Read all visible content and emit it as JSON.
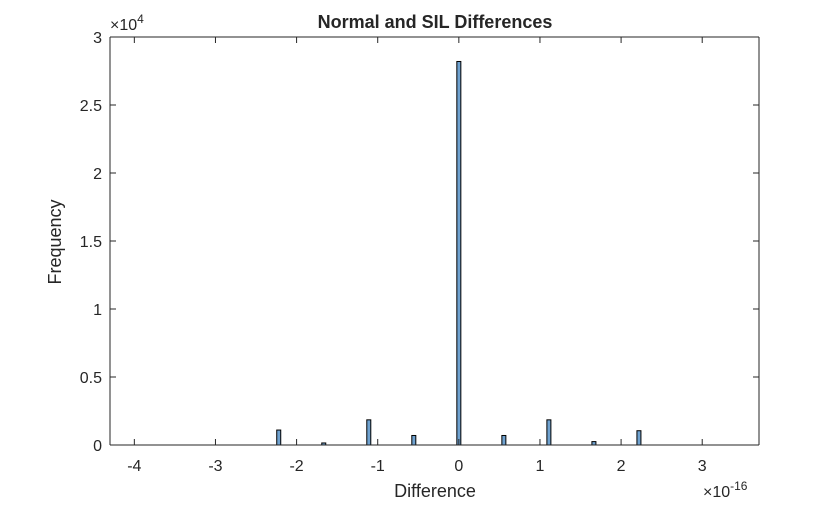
{
  "chart_data": {
    "type": "bar",
    "title": "Normal and SIL Differences",
    "xlabel": "Difference",
    "ylabel": "Frequency",
    "x_exponent": {
      "base": "×10",
      "power": "-16"
    },
    "y_exponent": {
      "base": "×10",
      "power": "4"
    },
    "xlim": [
      -4.3,
      3.7
    ],
    "ylim": [
      0,
      3
    ],
    "x_units_scale": "1e-16",
    "y_units_scale": "1e4",
    "xticks": [
      -4,
      -3,
      -2,
      -1,
      0,
      1,
      2,
      3
    ],
    "xtick_labels": [
      "-4",
      "-3",
      "-2",
      "-1",
      "0",
      "1",
      "2",
      "3"
    ],
    "yticks": [
      0,
      0.5,
      1,
      1.5,
      2,
      2.5,
      3
    ],
    "ytick_labels": [
      "0",
      "0.5",
      "1",
      "1.5",
      "2",
      "2.5",
      "3"
    ],
    "bar_color": "#6fa2d0",
    "bar_edge_color": "#000000",
    "bins": [
      {
        "center": -2.22,
        "value": 0.11
      },
      {
        "center": -1.665,
        "value": 0.015
      },
      {
        "center": -1.11,
        "value": 0.185
      },
      {
        "center": -0.555,
        "value": 0.07
      },
      {
        "center": 0.0,
        "value": 2.82
      },
      {
        "center": 0.555,
        "value": 0.07
      },
      {
        "center": 1.11,
        "value": 0.185
      },
      {
        "center": 1.665,
        "value": 0.025
      },
      {
        "center": 2.22,
        "value": 0.105
      }
    ],
    "grid": false,
    "legend": "none"
  }
}
